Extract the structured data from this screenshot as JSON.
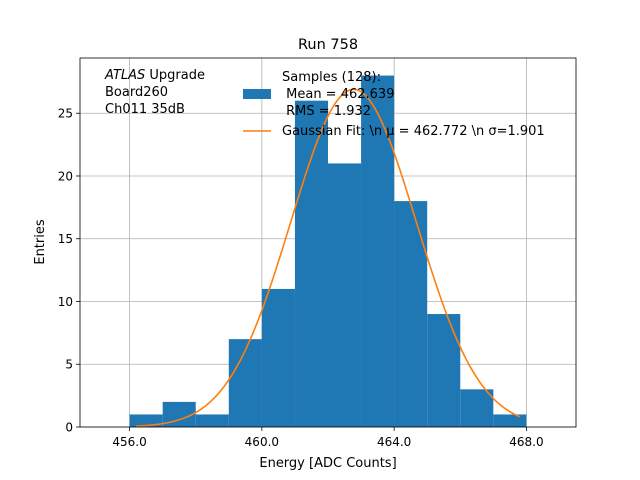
{
  "chart_data": {
    "type": "bar",
    "title": "Run 758",
    "xlabel": "Energy [ADC Counts]",
    "ylabel": "Entries",
    "xlim": [
      454.5,
      469.5
    ],
    "ylim": [
      0,
      29.4
    ],
    "grid": true,
    "x_ticks": [
      456.0,
      460.0,
      464.0,
      468.0
    ],
    "x_tick_labels": [
      "456.0",
      "460.0",
      "464.0",
      "468.0"
    ],
    "y_ticks": [
      0,
      5,
      10,
      15,
      20,
      25
    ],
    "y_tick_labels": [
      "0",
      "5",
      "10",
      "15",
      "20",
      "25"
    ],
    "bin_edges": [
      456,
      457,
      458,
      459,
      460,
      461,
      462,
      463,
      464,
      465,
      466,
      467,
      468
    ],
    "values": [
      1,
      2,
      1,
      7,
      11,
      26,
      21,
      28,
      18,
      9,
      3,
      1
    ],
    "bar_color": "#1f77b4",
    "fit": {
      "mu": 462.772,
      "sigma": 1.901,
      "amplitude": 26.9,
      "x_range": [
        456.2,
        467.8
      ],
      "color": "#ff7f0e"
    },
    "annotation": {
      "lines": [
        {
          "italic": "ATLAS",
          "rest": " Upgrade"
        },
        {
          "italic": "",
          "rest": " Board260"
        },
        {
          "italic": "",
          "rest": " Ch011 35dB"
        }
      ]
    },
    "legend": {
      "placement": "top-right",
      "entries": [
        {
          "kind": "patch",
          "lines": [
            "Samples (128):",
            " Mean = 462.639",
            " RMS = 1.932"
          ]
        },
        {
          "kind": "line",
          "lines": [
            "Gaussian Fit: \\n μ = 462.772 \\n σ=1.901"
          ]
        }
      ]
    }
  }
}
